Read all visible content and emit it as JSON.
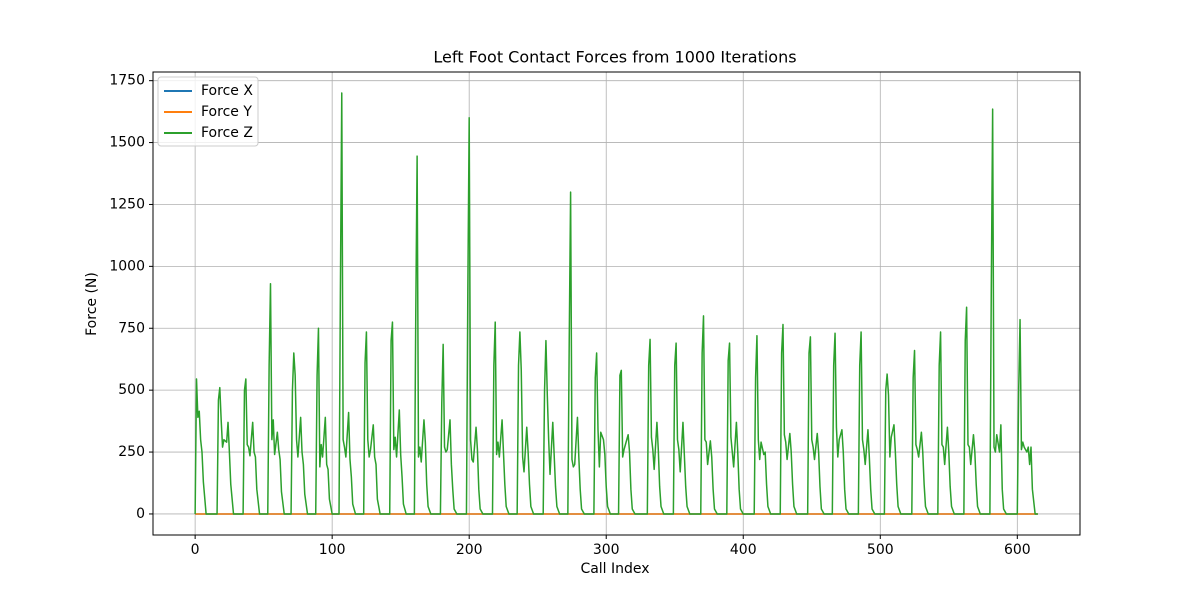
{
  "chart_data": {
    "type": "line",
    "title": "Left Foot Contact Forces from 1000 Iterations",
    "x_label": "Call Index",
    "y_label": "Force (N)",
    "xlim": [
      -30.75,
      645.75
    ],
    "xticks": [
      0,
      100,
      200,
      300,
      400,
      500,
      600
    ],
    "ylim": [
      -85,
      1785
    ],
    "yticks": [
      0,
      250,
      500,
      750,
      1000,
      1250,
      1500,
      1750
    ],
    "grid": true,
    "legend": "upper left",
    "series": [
      {
        "name": "Force X",
        "color": "#1f77b4",
        "x": [
          0,
          615
        ],
        "values": [
          0,
          0
        ]
      },
      {
        "name": "Force Y",
        "color": "#ff7f0e",
        "x": [
          0,
          615
        ],
        "values": [
          0,
          0
        ]
      },
      {
        "name": "Force Z",
        "color": "#2ca02c",
        "x": [
          0,
          1,
          2,
          3,
          4,
          5,
          6,
          8,
          16,
          17,
          18,
          19,
          20,
          21,
          23,
          24,
          25,
          26,
          28,
          35,
          36,
          37,
          38,
          39,
          40,
          42,
          43,
          44,
          45,
          47,
          53,
          54,
          55,
          56,
          57,
          58,
          60,
          61,
          62,
          63,
          65,
          70,
          71,
          72,
          73,
          74,
          75,
          77,
          78,
          79,
          80,
          82,
          88,
          89,
          90,
          91,
          92,
          93,
          95,
          96,
          97,
          98,
          100,
          105,
          106,
          107,
          108,
          109,
          110,
          112,
          113,
          114,
          115,
          117,
          123,
          124,
          125,
          126,
          127,
          128,
          130,
          131,
          132,
          133,
          135,
          142,
          143,
          144,
          145,
          146,
          147,
          149,
          150,
          151,
          152,
          154,
          160,
          161,
          162,
          163,
          164,
          165,
          167,
          168,
          169,
          170,
          172,
          179,
          180,
          181,
          182,
          183,
          184,
          186,
          187,
          188,
          189,
          191,
          198,
          199,
          200,
          201,
          202,
          203,
          205,
          206,
          207,
          208,
          210,
          217,
          218,
          219,
          220,
          221,
          222,
          224,
          225,
          226,
          227,
          229,
          235,
          236,
          237,
          238,
          239,
          240,
          242,
          243,
          244,
          245,
          247,
          254,
          255,
          256,
          257,
          258,
          259,
          261,
          262,
          263,
          264,
          266,
          272,
          273,
          274,
          275,
          276,
          277,
          279,
          280,
          281,
          282,
          284,
          291,
          292,
          293,
          294,
          295,
          296,
          298,
          299,
          300,
          301,
          303,
          309,
          310,
          311,
          312,
          313,
          314,
          316,
          317,
          318,
          319,
          321,
          330,
          331,
          332,
          333,
          334,
          335,
          337,
          338,
          339,
          340,
          342,
          349,
          350,
          351,
          352,
          353,
          354,
          356,
          357,
          358,
          359,
          361,
          369,
          370,
          371,
          372,
          373,
          374,
          376,
          377,
          378,
          379,
          381,
          388,
          389,
          390,
          391,
          392,
          393,
          395,
          396,
          397,
          398,
          400,
          408,
          409,
          410,
          411,
          412,
          413,
          415,
          416,
          417,
          418,
          420,
          427,
          428,
          429,
          430,
          431,
          432,
          434,
          435,
          436,
          437,
          439,
          447,
          448,
          449,
          450,
          451,
          452,
          454,
          455,
          456,
          457,
          459,
          465,
          466,
          467,
          468,
          469,
          470,
          472,
          473,
          474,
          475,
          477,
          484,
          485,
          486,
          487,
          488,
          489,
          491,
          492,
          493,
          494,
          496,
          503,
          504,
          505,
          506,
          507,
          508,
          510,
          511,
          512,
          513,
          515,
          523,
          524,
          525,
          526,
          527,
          528,
          530,
          531,
          532,
          533,
          535,
          542,
          543,
          544,
          545,
          546,
          547,
          549,
          550,
          551,
          552,
          554,
          561,
          562,
          563,
          564,
          565,
          566,
          568,
          569,
          570,
          571,
          573,
          580,
          581,
          582,
          583,
          584,
          585,
          587,
          588,
          589,
          590,
          592,
          600,
          601,
          602,
          603,
          604,
          605,
          607,
          608,
          609,
          610,
          611,
          613,
          615
        ],
        "values": [
          0,
          545,
          390,
          415,
          300,
          250,
          130,
          0,
          0,
          460,
          510,
          380,
          270,
          300,
          290,
          370,
          250,
          120,
          0,
          0,
          500,
          545,
          280,
          270,
          235,
          370,
          250,
          230,
          100,
          0,
          0,
          600,
          930,
          300,
          380,
          240,
          330,
          260,
          220,
          90,
          0,
          0,
          500,
          650,
          560,
          300,
          230,
          390,
          250,
          200,
          80,
          0,
          0,
          560,
          750,
          190,
          280,
          230,
          390,
          200,
          180,
          60,
          0,
          0,
          900,
          1700,
          300,
          270,
          230,
          410,
          220,
          150,
          40,
          0,
          0,
          610,
          735,
          300,
          230,
          260,
          360,
          230,
          200,
          60,
          0,
          0,
          700,
          775,
          260,
          310,
          230,
          420,
          240,
          150,
          40,
          0,
          0,
          800,
          1445,
          230,
          270,
          210,
          380,
          290,
          120,
          30,
          0,
          0,
          450,
          685,
          270,
          250,
          260,
          380,
          200,
          100,
          20,
          0,
          0,
          900,
          1600,
          300,
          220,
          210,
          350,
          260,
          100,
          20,
          0,
          0,
          600,
          775,
          240,
          290,
          230,
          380,
          250,
          120,
          30,
          0,
          0,
          600,
          735,
          580,
          230,
          170,
          350,
          250,
          120,
          30,
          0,
          0,
          500,
          700,
          480,
          300,
          160,
          370,
          240,
          110,
          30,
          0,
          0,
          700,
          1300,
          220,
          190,
          200,
          390,
          230,
          100,
          20,
          0,
          0,
          550,
          650,
          340,
          190,
          330,
          300,
          240,
          110,
          30,
          0,
          0,
          560,
          580,
          230,
          260,
          280,
          320,
          250,
          100,
          20,
          0,
          0,
          600,
          705,
          310,
          260,
          180,
          370,
          260,
          110,
          30,
          0,
          0,
          600,
          690,
          300,
          260,
          170,
          370,
          240,
          110,
          30,
          0,
          0,
          650,
          800,
          300,
          290,
          200,
          295,
          230,
          100,
          20,
          0,
          0,
          620,
          690,
          310,
          250,
          190,
          370,
          250,
          100,
          20,
          0,
          0,
          550,
          720,
          300,
          220,
          290,
          240,
          250,
          120,
          30,
          0,
          0,
          650,
          765,
          320,
          290,
          220,
          325,
          250,
          120,
          30,
          0,
          0,
          650,
          715,
          300,
          270,
          220,
          325,
          250,
          110,
          20,
          0,
          0,
          600,
          730,
          350,
          230,
          300,
          340,
          250,
          100,
          20,
          0,
          0,
          600,
          735,
          300,
          260,
          200,
          340,
          230,
          100,
          20,
          0,
          0,
          500,
          565,
          480,
          230,
          310,
          360,
          250,
          120,
          30,
          0,
          0,
          550,
          660,
          280,
          260,
          230,
          330,
          250,
          120,
          30,
          0,
          0,
          600,
          735,
          280,
          270,
          200,
          350,
          250,
          110,
          30,
          0,
          0,
          700,
          835,
          280,
          270,
          200,
          320,
          250,
          120,
          30,
          0,
          0,
          900,
          1635,
          270,
          250,
          320,
          250,
          360,
          100,
          20,
          0,
          0,
          500,
          785,
          260,
          290,
          270,
          250,
          270,
          200,
          270,
          100,
          0,
          0
        ]
      }
    ]
  }
}
